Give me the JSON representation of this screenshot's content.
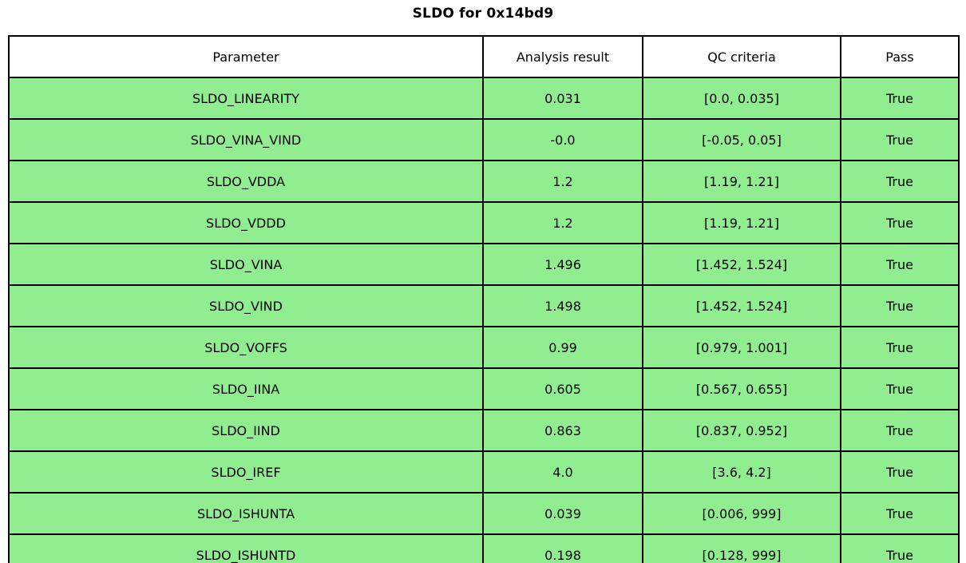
{
  "title": "SLDO for 0x14bd9",
  "colors": {
    "pass_row_bg": "#90ee90",
    "header_bg": "#ffffff",
    "border": "#000000",
    "text": "#000000"
  },
  "table": {
    "columns": [
      "Parameter",
      "Analysis result",
      "QC criteria",
      "Pass"
    ],
    "rows": [
      {
        "parameter": "SLDO_LINEARITY",
        "result": "0.031",
        "criteria": "[0.0, 0.035]",
        "pass": "True"
      },
      {
        "parameter": "SLDO_VINA_VIND",
        "result": "-0.0",
        "criteria": "[-0.05, 0.05]",
        "pass": "True"
      },
      {
        "parameter": "SLDO_VDDA",
        "result": "1.2",
        "criteria": "[1.19, 1.21]",
        "pass": "True"
      },
      {
        "parameter": "SLDO_VDDD",
        "result": "1.2",
        "criteria": "[1.19, 1.21]",
        "pass": "True"
      },
      {
        "parameter": "SLDO_VINA",
        "result": "1.496",
        "criteria": "[1.452, 1.524]",
        "pass": "True"
      },
      {
        "parameter": "SLDO_VIND",
        "result": "1.498",
        "criteria": "[1.452, 1.524]",
        "pass": "True"
      },
      {
        "parameter": "SLDO_VOFFS",
        "result": "0.99",
        "criteria": "[0.979, 1.001]",
        "pass": "True"
      },
      {
        "parameter": "SLDO_IINA",
        "result": "0.605",
        "criteria": "[0.567, 0.655]",
        "pass": "True"
      },
      {
        "parameter": "SLDO_IIND",
        "result": "0.863",
        "criteria": "[0.837, 0.952]",
        "pass": "True"
      },
      {
        "parameter": "SLDO_IREF",
        "result": "4.0",
        "criteria": "[3.6, 4.2]",
        "pass": "True"
      },
      {
        "parameter": "SLDO_ISHUNTA",
        "result": "0.039",
        "criteria": "[0.006, 999]",
        "pass": "True"
      },
      {
        "parameter": "SLDO_ISHUNTD",
        "result": "0.198",
        "criteria": "[0.128, 999]",
        "pass": "True"
      }
    ]
  },
  "chart_data": {
    "type": "table",
    "title": "SLDO for 0x14bd9",
    "columns": [
      "Parameter",
      "Analysis result",
      "QC criteria",
      "Pass"
    ],
    "rows": [
      [
        "SLDO_LINEARITY",
        0.031,
        "[0.0, 0.035]",
        "True"
      ],
      [
        "SLDO_VINA_VIND",
        -0.0,
        "[-0.05, 0.05]",
        "True"
      ],
      [
        "SLDO_VDDA",
        1.2,
        "[1.19, 1.21]",
        "True"
      ],
      [
        "SLDO_VDDD",
        1.2,
        "[1.19, 1.21]",
        "True"
      ],
      [
        "SLDO_VINA",
        1.496,
        "[1.452, 1.524]",
        "True"
      ],
      [
        "SLDO_VIND",
        1.498,
        "[1.452, 1.524]",
        "True"
      ],
      [
        "SLDO_VOFFS",
        0.99,
        "[0.979, 1.001]",
        "True"
      ],
      [
        "SLDO_IINA",
        0.605,
        "[0.567, 0.655]",
        "True"
      ],
      [
        "SLDO_IIND",
        0.863,
        "[0.837, 0.952]",
        "True"
      ],
      [
        "SLDO_IREF",
        4.0,
        "[3.6, 4.2]",
        "True"
      ],
      [
        "SLDO_ISHUNTA",
        0.039,
        "[0.006, 999]",
        "True"
      ],
      [
        "SLDO_ISHUNTD",
        0.198,
        "[0.128, 999]",
        "True"
      ]
    ],
    "row_fill_color": "#90ee90",
    "header_fill_color": "#ffffff",
    "all_rows_pass": true
  }
}
